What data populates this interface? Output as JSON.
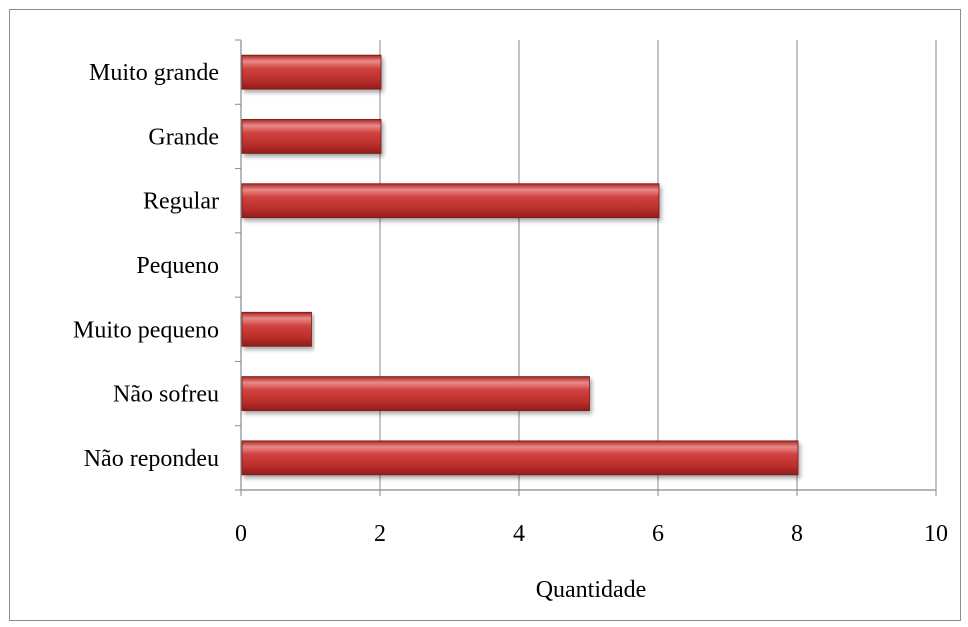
{
  "chart_data": {
    "type": "bar",
    "orientation": "horizontal",
    "categories": [
      "Não repondeu",
      "Não sofreu",
      "Muito pequeno",
      "Pequeno",
      "Regular",
      "Grande",
      "Muito grande"
    ],
    "values": [
      8,
      5,
      1,
      0,
      6,
      2,
      2
    ],
    "title": "",
    "xlabel": "Quantidade",
    "ylabel": "",
    "xlim": [
      0,
      10
    ],
    "xticks": [
      0,
      2,
      4,
      6,
      8,
      10
    ],
    "xtick_labels": [
      "0",
      "2",
      "4",
      "6",
      "8",
      "10"
    ],
    "grid": "vertical",
    "legend": "none",
    "colors": {
      "bar": "#c0302f",
      "bar_light": "#e98a88",
      "bar_dark": "#8e1d1c",
      "grid": "#8a8a8a",
      "axis": "#8a8a8a"
    }
  }
}
